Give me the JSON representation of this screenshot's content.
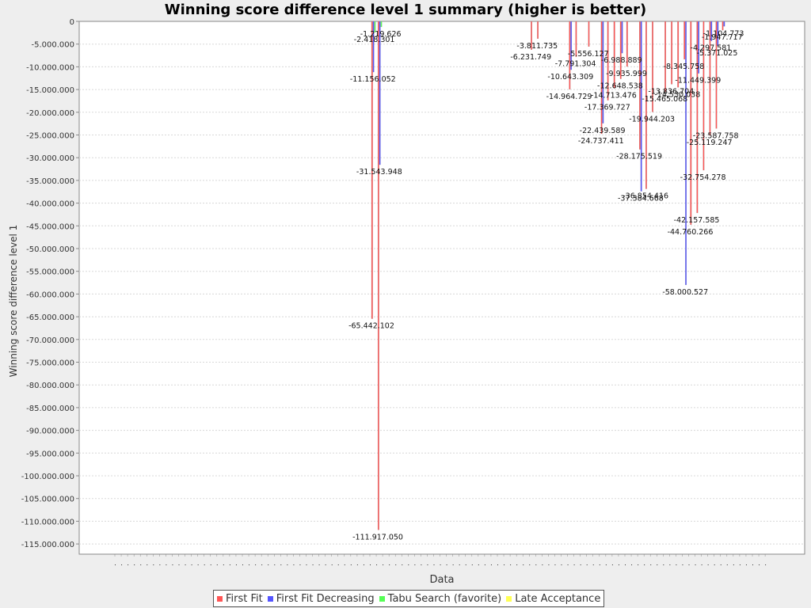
{
  "chart_data": {
    "type": "bar",
    "title": "Winning score difference level 1 summary (higher is better)",
    "xlabel": "Data",
    "ylabel": "Winning score difference level 1",
    "ylim": [
      -118000000,
      0
    ],
    "yticks": [
      0,
      -5000000,
      -10000000,
      -15000000,
      -20000000,
      -25000000,
      -30000000,
      -35000000,
      -40000000,
      -45000000,
      -50000000,
      -55000000,
      -60000000,
      -65000000,
      -70000000,
      -75000000,
      -80000000,
      -85000000,
      -90000000,
      -95000000,
      -100000000,
      -105000000,
      -110000000,
      -115000000
    ],
    "ytick_labels": [
      "0",
      "-5.000.000",
      "-10.000.000",
      "-15.000.000",
      "-20.000.000",
      "-25.000.000",
      "-30.000.000",
      "-35.000.000",
      "-40.000.000",
      "-45.000.000",
      "-50.000.000",
      "-55.000.000",
      "-60.000.000",
      "-65.000.000",
      "-70.000.000",
      "-75.000.000",
      "-80.000.000",
      "-85.000.000",
      "-90.000.000",
      "-95.000.000",
      "-100.000.000",
      "-105.000.000",
      "-110.000.000",
      "-115.000.000"
    ],
    "grid": true,
    "legend_position": "bottom",
    "category_count": 103,
    "series": [
      {
        "name": "First Fit",
        "color": "#ff5555"
      },
      {
        "name": "First Fit Decreasing",
        "color": "#5555ff"
      },
      {
        "name": "Tabu Search (favorite)",
        "color": "#55ff55"
      },
      {
        "name": "Late Acceptance",
        "color": "#ffff55"
      }
    ],
    "bars": [
      {
        "category": 40,
        "series": 0,
        "value": -65442102,
        "label": "-65.442.102"
      },
      {
        "category": 40,
        "series": 1,
        "value": -11156052,
        "label": "-11.156.052"
      },
      {
        "category": 41,
        "series": 0,
        "value": -111917050,
        "label": "-111.917.050"
      },
      {
        "category": 41,
        "series": 1,
        "value": -31543948,
        "label": "-31.543.948"
      },
      {
        "category": 40,
        "series": 2,
        "value": -2418301,
        "label": "-2.418.301"
      },
      {
        "category": 41,
        "series": 2,
        "value": -1219626,
        "label": "-1.219.626"
      },
      {
        "category": 66,
        "series": 0,
        "value": -3811735,
        "label": "-3.811.735"
      },
      {
        "category": 65,
        "series": 0,
        "value": -6231749,
        "label": "-6.231.749"
      },
      {
        "category": 71,
        "series": 0,
        "value": -14964729,
        "label": "-14.964.729"
      },
      {
        "category": 71,
        "series": 1,
        "value": -10643309,
        "label": "-10.643.309"
      },
      {
        "category": 72,
        "series": 0,
        "value": -7791304,
        "label": "-7.791.304"
      },
      {
        "category": 74,
        "series": 0,
        "value": -5556127,
        "label": "-5.556.127"
      },
      {
        "category": 76,
        "series": 0,
        "value": -24737411,
        "label": "-24.737.411"
      },
      {
        "category": 76,
        "series": 1,
        "value": -22439589,
        "label": "-22.439.589"
      },
      {
        "category": 77,
        "series": 0,
        "value": -17369727,
        "label": "-17.369.727"
      },
      {
        "category": 78,
        "series": 0,
        "value": -14713476,
        "label": "-14.713.476"
      },
      {
        "category": 79,
        "series": 0,
        "value": -12648538,
        "label": "-12.648.538"
      },
      {
        "category": 79,
        "series": 1,
        "value": -6988889,
        "label": "-6.988.889"
      },
      {
        "category": 80,
        "series": 0,
        "value": -9935999,
        "label": "-9.935.999"
      },
      {
        "category": 82,
        "series": 0,
        "value": -28175519,
        "label": "-28.175.519"
      },
      {
        "category": 82,
        "series": 1,
        "value": -37384668,
        "label": "-37.384.668"
      },
      {
        "category": 83,
        "series": 0,
        "value": -36854416,
        "label": "-36.854.416"
      },
      {
        "category": 84,
        "series": 0,
        "value": -19944203,
        "label": "-19.944.203"
      },
      {
        "category": 86,
        "series": 0,
        "value": -15465068,
        "label": "-15.465.068"
      },
      {
        "category": 87,
        "series": 0,
        "value": -13836704,
        "label": "-13.836.704"
      },
      {
        "category": 88,
        "series": 0,
        "value": -14530038,
        "label": "-14.530.038"
      },
      {
        "category": 89,
        "series": 0,
        "value": -8345758,
        "label": "-8.345.758"
      },
      {
        "category": 89,
        "series": 1,
        "value": -58000527,
        "label": "-58.000.527"
      },
      {
        "category": 90,
        "series": 0,
        "value": -44760266,
        "label": "-44.760.266"
      },
      {
        "category": 91,
        "series": 0,
        "value": -42157585,
        "label": "-42.157.585"
      },
      {
        "category": 91,
        "series": 1,
        "value": -11449399,
        "label": "-11.449.399"
      },
      {
        "category": 92,
        "series": 0,
        "value": -32754278,
        "label": "-32.754.278"
      },
      {
        "category": 93,
        "series": 0,
        "value": -25119247,
        "label": "-25.119.247"
      },
      {
        "category": 93,
        "series": 1,
        "value": -4297581,
        "label": "-4.297.581"
      },
      {
        "category": 94,
        "series": 0,
        "value": -23587758,
        "label": "-23.587.758"
      },
      {
        "category": 94,
        "series": 1,
        "value": -5371025,
        "label": "-5.371.025"
      },
      {
        "category": 95,
        "series": 0,
        "value": -1947717,
        "label": "-1.947.717"
      },
      {
        "category": 95,
        "series": 1,
        "value": -1104773,
        "label": "-1.104.773"
      }
    ]
  }
}
